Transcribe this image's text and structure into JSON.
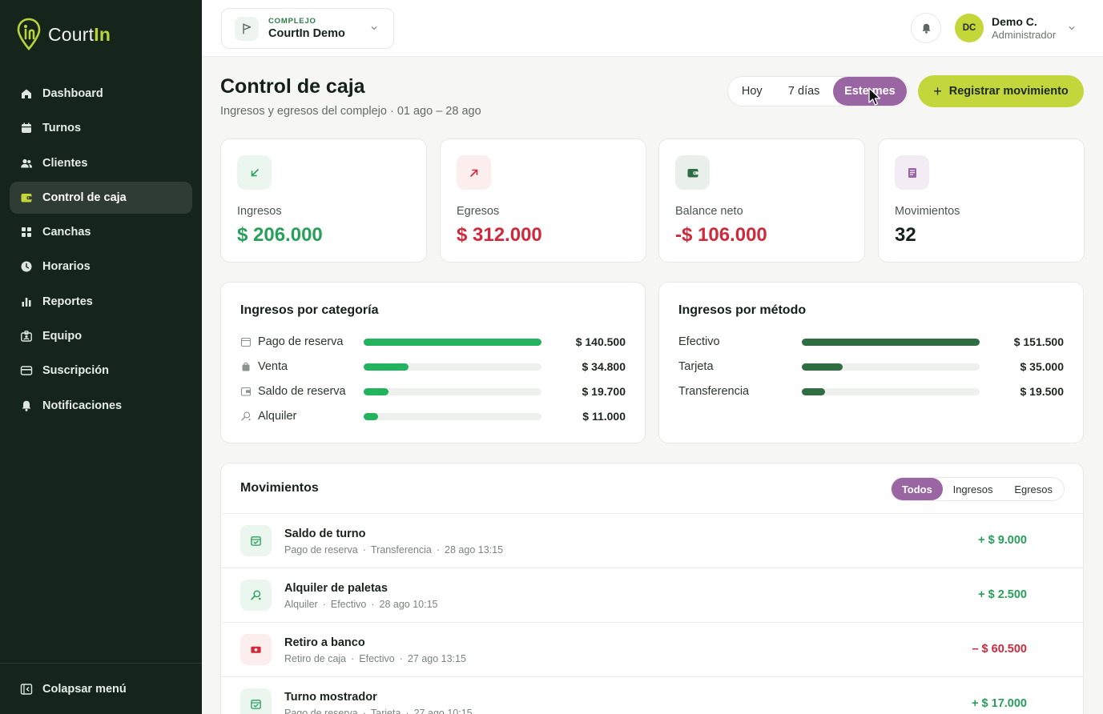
{
  "brand": {
    "name_part1": "Court",
    "name_part2": "In"
  },
  "sidebar": {
    "items": [
      {
        "label": "Dashboard",
        "icon": "home-icon"
      },
      {
        "label": "Turnos",
        "icon": "calendar-icon"
      },
      {
        "label": "Clientes",
        "icon": "users-icon"
      },
      {
        "label": "Control de caja",
        "icon": "wallet-icon",
        "active": true
      },
      {
        "label": "Canchas",
        "icon": "grid-icon"
      },
      {
        "label": "Horarios",
        "icon": "clock-icon"
      },
      {
        "label": "Reportes",
        "icon": "bar-chart-icon"
      },
      {
        "label": "Equipo",
        "icon": "badge-icon"
      },
      {
        "label": "Suscripción",
        "icon": "credit-card-icon"
      },
      {
        "label": "Notificaciones",
        "icon": "bell-icon"
      }
    ],
    "collapse_label": "Colapsar menú"
  },
  "topbar": {
    "complex_label": "COMPLEJO",
    "complex_name": "CourtIn Demo",
    "user_initials": "DC",
    "user_name": "Demo C.",
    "user_role": "Administrador"
  },
  "page": {
    "title": "Control de caja",
    "subtitle": "Ingresos y egresos del complejo · 01 ago – 28 ago",
    "range_tabs": [
      "Hoy",
      "7 días",
      "Este mes"
    ],
    "register_label": "Registrar movimiento"
  },
  "kpis": [
    {
      "label": "Ingresos",
      "value": "$ 206.000",
      "color": "#27a05a",
      "icon": "arrow-down-left-icon",
      "icon_bg": "#eaf6ee"
    },
    {
      "label": "Egresos",
      "value": "$ 312.000",
      "color": "#d0293b",
      "icon": "arrow-up-right-icon",
      "icon_bg": "#fdeeee"
    },
    {
      "label": "Balance neto",
      "value": "-$ 106.000",
      "color": "#d0293b",
      "icon": "wallet-icon",
      "icon_bg": "#e9efea"
    },
    {
      "label": "Movimientos",
      "value": "32",
      "color": "#16221b",
      "icon": "receipt-icon",
      "icon_bg": "#f4ecf5"
    }
  ],
  "by_category": {
    "title": "Ingresos por categoría",
    "rows": [
      {
        "label": "Pago de reserva",
        "value": "$ 140.500",
        "fraction": 1.0,
        "icon": "calendar-icon"
      },
      {
        "label": "Venta",
        "value": "$ 34.800",
        "fraction": 0.25,
        "icon": "bag-icon"
      },
      {
        "label": "Saldo de reserva",
        "value": "$ 19.700",
        "fraction": 0.14,
        "icon": "wallet-icon"
      },
      {
        "label": "Alquiler",
        "value": "$ 11.000",
        "fraction": 0.08,
        "icon": "racket-icon"
      }
    ],
    "bar_color": "#23b35f"
  },
  "by_method": {
    "title": "Ingresos por método",
    "rows": [
      {
        "label": "Efectivo",
        "value": "$ 151.500",
        "fraction": 1.0
      },
      {
        "label": "Tarjeta",
        "value": "$ 35.000",
        "fraction": 0.23
      },
      {
        "label": "Transferencia",
        "value": "$ 19.500",
        "fraction": 0.13
      }
    ],
    "bar_color": "#2f6e43"
  },
  "movements": {
    "title": "Movimientos",
    "filters": [
      "Todos",
      "Ingresos",
      "Egresos"
    ],
    "rows": [
      {
        "name": "Saldo de turno",
        "category": "Pago de reserva",
        "method": "Transferencia",
        "date": "28 ago 13:15",
        "amount": "+ $ 9.000",
        "type": "in",
        "icon": "calendar-check-icon"
      },
      {
        "name": "Alquiler de paletas",
        "category": "Alquiler",
        "method": "Efectivo",
        "date": "28 ago 10:15",
        "amount": "+ $ 2.500",
        "type": "in",
        "icon": "racket-icon"
      },
      {
        "name": "Retiro a banco",
        "category": "Retiro de caja",
        "method": "Efectivo",
        "date": "27 ago 13:15",
        "amount": "– $ 60.500",
        "type": "out",
        "icon": "cash-icon"
      },
      {
        "name": "Turno mostrador",
        "category": "Pago de reserva",
        "method": "Tarjeta",
        "date": "27 ago 10:15",
        "amount": "+ $ 17.000",
        "type": "in",
        "icon": "calendar-check-icon"
      }
    ]
  }
}
